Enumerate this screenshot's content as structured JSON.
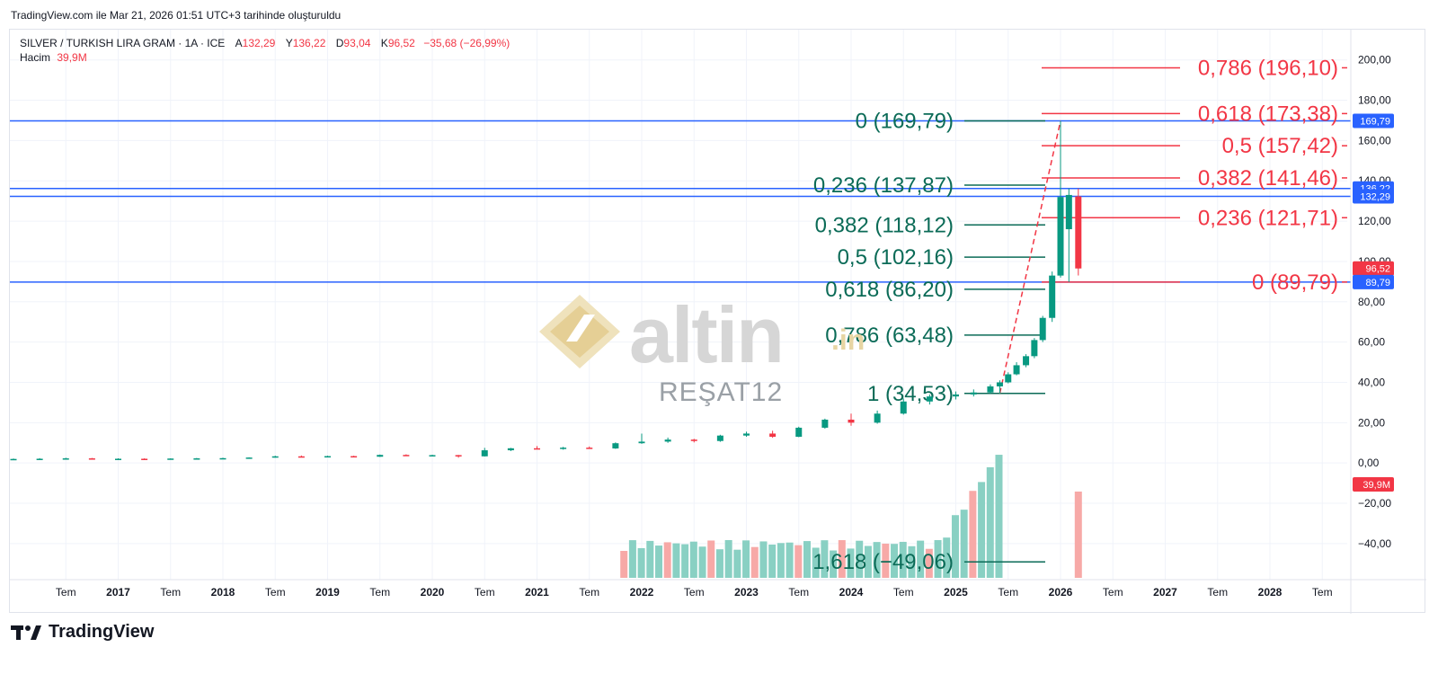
{
  "header_note": "TradingView.com ile Mar 21, 2026 01:51 UTC+3 tarihinde oluşturuldu",
  "legend": {
    "symbol": "SILVER / TURKISH LIRA GRAM · 1A · ICE",
    "open_label": "A",
    "open": "132,29",
    "high_label": "Y",
    "high": "136,22",
    "low_label": "D",
    "low": "93,04",
    "close_label": "K",
    "close": "96,52",
    "change": "−35,68 (−26,99%)",
    "volume_label": "Hacim",
    "volume": "39,9M"
  },
  "watermark": {
    "brand": "altin",
    "suffix": ".in",
    "author": "REŞAT12"
  },
  "brand": {
    "name": "TradingView",
    "logo": "tradingview-logo-icon"
  },
  "colors": {
    "up": "#089981",
    "down": "#f23645",
    "vol_up": "#89d0c3",
    "vol_down": "#f7a9a7",
    "horizontal_line": "#2962ff",
    "fib_green": "#0b6b57",
    "fib_red": "#f23645",
    "price_tag_blue": "#2962ff"
  },
  "chart_data": {
    "type": "candlestick",
    "interval": "1 month",
    "ylim": [
      -57,
      207
    ],
    "y_ticks": [
      "200,00",
      "180,00",
      "160,00",
      "140,00",
      "120,00",
      "100,00",
      "80,00",
      "60,00",
      "40,00",
      "20,00",
      "0,00",
      "−20,00",
      "−40,00"
    ],
    "x_ticks": [
      "Tem",
      "2017",
      "Tem",
      "2018",
      "Tem",
      "2019",
      "Tem",
      "2020",
      "Tem",
      "2021",
      "Tem",
      "2022",
      "Tem",
      "2023",
      "Tem",
      "2024",
      "Tem",
      "2025",
      "Tem",
      "2026",
      "Tem",
      "2027",
      "Tem",
      "2028",
      "Tem"
    ],
    "price_tags": [
      {
        "label": "169,79",
        "value": 169.79,
        "color": "#2962ff"
      },
      {
        "label": "136,22",
        "value": 136.22,
        "color": "#2962ff"
      },
      {
        "label": "132,29",
        "value": 132.29,
        "color": "#2962ff"
      },
      {
        "label": "96,52",
        "value": 96.52,
        "color": "#f23645"
      },
      {
        "label": "89,79",
        "value": 89.79,
        "color": "#2962ff"
      },
      {
        "label": "39,9M",
        "value": null,
        "color": "#f23645"
      }
    ],
    "horizontal_lines": [
      169.79,
      136.22,
      132.29,
      89.79
    ],
    "fib_retracement_green": [
      {
        "label": "0 (169,79)",
        "value": 169.79
      },
      {
        "label": "0,236 (137,87)",
        "value": 137.87
      },
      {
        "label": "0,382 (118,12)",
        "value": 118.12
      },
      {
        "label": "0,5 (102,16)",
        "value": 102.16
      },
      {
        "label": "0,618 (86,20)",
        "value": 86.2
      },
      {
        "label": "0,786 (63,48)",
        "value": 63.48
      },
      {
        "label": "1 (34,53)",
        "value": 34.53
      },
      {
        "label": "1,618 (−49,06)",
        "value": -49.06
      }
    ],
    "fib_retracement_red": [
      {
        "label": "0,786 (196,10)",
        "value": 196.1
      },
      {
        "label": "0,618 (173,38)",
        "value": 173.38
      },
      {
        "label": "0,5 (157,42)",
        "value": 157.42
      },
      {
        "label": "0,382 (141,46)",
        "value": 141.46
      },
      {
        "label": "0,236 (121,71)",
        "value": 121.71
      },
      {
        "label": "0 (89,79)",
        "value": 89.79
      }
    ],
    "trend_line": {
      "from": {
        "t": 2025.42,
        "value": 34.53
      },
      "to": {
        "t": 2026.0,
        "value": 169.79
      }
    },
    "candles": [
      {
        "t": 2016.0,
        "o": 1.8,
        "h": 2.2,
        "l": 1.6,
        "c": 2.0
      },
      {
        "t": 2016.25,
        "o": 2.0,
        "h": 2.4,
        "l": 1.8,
        "c": 2.1
      },
      {
        "t": 2016.5,
        "o": 2.1,
        "h": 2.6,
        "l": 1.9,
        "c": 2.3
      },
      {
        "t": 2016.75,
        "o": 2.3,
        "h": 2.5,
        "l": 1.9,
        "c": 2.0
      },
      {
        "t": 2017.0,
        "o": 2.0,
        "h": 2.3,
        "l": 1.8,
        "c": 2.1
      },
      {
        "t": 2017.25,
        "o": 2.1,
        "h": 2.3,
        "l": 1.9,
        "c": 2.0
      },
      {
        "t": 2017.5,
        "o": 2.0,
        "h": 2.3,
        "l": 1.8,
        "c": 2.2
      },
      {
        "t": 2017.75,
        "o": 2.2,
        "h": 2.5,
        "l": 2.0,
        "c": 2.3
      },
      {
        "t": 2018.0,
        "o": 2.3,
        "h": 2.6,
        "l": 2.1,
        "c": 2.4
      },
      {
        "t": 2018.25,
        "o": 2.4,
        "h": 2.8,
        "l": 2.2,
        "c": 2.7
      },
      {
        "t": 2018.5,
        "o": 2.7,
        "h": 3.6,
        "l": 2.6,
        "c": 3.3
      },
      {
        "t": 2018.75,
        "o": 3.3,
        "h": 3.7,
        "l": 3.0,
        "c": 3.2
      },
      {
        "t": 2019.0,
        "o": 3.2,
        "h": 3.6,
        "l": 3.0,
        "c": 3.4
      },
      {
        "t": 2019.25,
        "o": 3.4,
        "h": 3.6,
        "l": 3.0,
        "c": 3.1
      },
      {
        "t": 2019.5,
        "o": 3.1,
        "h": 4.2,
        "l": 3.0,
        "c": 4.0
      },
      {
        "t": 2019.75,
        "o": 4.0,
        "h": 4.3,
        "l": 3.5,
        "c": 3.7
      },
      {
        "t": 2020.0,
        "o": 3.7,
        "h": 4.1,
        "l": 3.4,
        "c": 3.9
      },
      {
        "t": 2020.25,
        "o": 3.9,
        "h": 4.0,
        "l": 2.6,
        "c": 3.3
      },
      {
        "t": 2020.5,
        "o": 3.3,
        "h": 7.5,
        "l": 3.2,
        "c": 6.3
      },
      {
        "t": 2020.75,
        "o": 6.3,
        "h": 7.5,
        "l": 5.9,
        "c": 7.3
      },
      {
        "t": 2021.0,
        "o": 7.3,
        "h": 8.4,
        "l": 6.8,
        "c": 7.0
      },
      {
        "t": 2021.25,
        "o": 7.0,
        "h": 8.0,
        "l": 6.6,
        "c": 7.6
      },
      {
        "t": 2021.5,
        "o": 7.6,
        "h": 8.2,
        "l": 7.0,
        "c": 7.2
      },
      {
        "t": 2021.75,
        "o": 7.2,
        "h": 10.2,
        "l": 7.0,
        "c": 9.8
      },
      {
        "t": 2022.0,
        "o": 9.8,
        "h": 14.6,
        "l": 9.5,
        "c": 10.6
      },
      {
        "t": 2022.25,
        "o": 10.6,
        "h": 12.6,
        "l": 10.0,
        "c": 11.6
      },
      {
        "t": 2022.5,
        "o": 11.6,
        "h": 12.0,
        "l": 10.2,
        "c": 10.9
      },
      {
        "t": 2022.75,
        "o": 10.9,
        "h": 14.0,
        "l": 10.5,
        "c": 13.6
      },
      {
        "t": 2023.0,
        "o": 13.6,
        "h": 15.5,
        "l": 13.0,
        "c": 14.6
      },
      {
        "t": 2023.25,
        "o": 14.6,
        "h": 16.0,
        "l": 12.5,
        "c": 13.0
      },
      {
        "t": 2023.5,
        "o": 13.0,
        "h": 18.0,
        "l": 12.8,
        "c": 17.5
      },
      {
        "t": 2023.75,
        "o": 17.5,
        "h": 22.0,
        "l": 17.0,
        "c": 21.5
      },
      {
        "t": 2024.0,
        "o": 21.5,
        "h": 24.5,
        "l": 18.5,
        "c": 20.0
      },
      {
        "t": 2024.25,
        "o": 20.0,
        "h": 26.0,
        "l": 19.5,
        "c": 24.5
      },
      {
        "t": 2024.5,
        "o": 24.5,
        "h": 32.0,
        "l": 24.0,
        "c": 30.5
      },
      {
        "t": 2024.75,
        "o": 30.5,
        "h": 34.0,
        "l": 29.0,
        "c": 33.0
      },
      {
        "t": 2025.0,
        "o": 33.0,
        "h": 35.5,
        "l": 31.5,
        "c": 34.0
      },
      {
        "t": 2025.17,
        "o": 34.0,
        "h": 36.5,
        "l": 33.0,
        "c": 35.0
      },
      {
        "t": 2025.33,
        "o": 35.0,
        "h": 39.0,
        "l": 34.5,
        "c": 38.0
      },
      {
        "t": 2025.42,
        "o": 38.0,
        "h": 41.0,
        "l": 34.5,
        "c": 40.0
      },
      {
        "t": 2025.5,
        "o": 40.0,
        "h": 45.0,
        "l": 39.5,
        "c": 44.0
      },
      {
        "t": 2025.58,
        "o": 44.0,
        "h": 50.0,
        "l": 43.5,
        "c": 48.5
      },
      {
        "t": 2025.67,
        "o": 48.5,
        "h": 54.0,
        "l": 47.5,
        "c": 53.0
      },
      {
        "t": 2025.75,
        "o": 53.0,
        "h": 62.0,
        "l": 52.0,
        "c": 61.0
      },
      {
        "t": 2025.83,
        "o": 61.0,
        "h": 73.0,
        "l": 60.0,
        "c": 72.0
      },
      {
        "t": 2025.92,
        "o": 72.0,
        "h": 95.0,
        "l": 70.0,
        "c": 93.0
      },
      {
        "t": 2026.0,
        "o": 93.0,
        "h": 169.79,
        "l": 92.0,
        "c": 132.0
      },
      {
        "t": 2026.08,
        "o": 116.0,
        "h": 136.22,
        "l": 89.79,
        "c": 133.0
      },
      {
        "t": 2026.17,
        "o": 132.29,
        "h": 136.22,
        "l": 93.04,
        "c": 96.52
      }
    ]
  }
}
